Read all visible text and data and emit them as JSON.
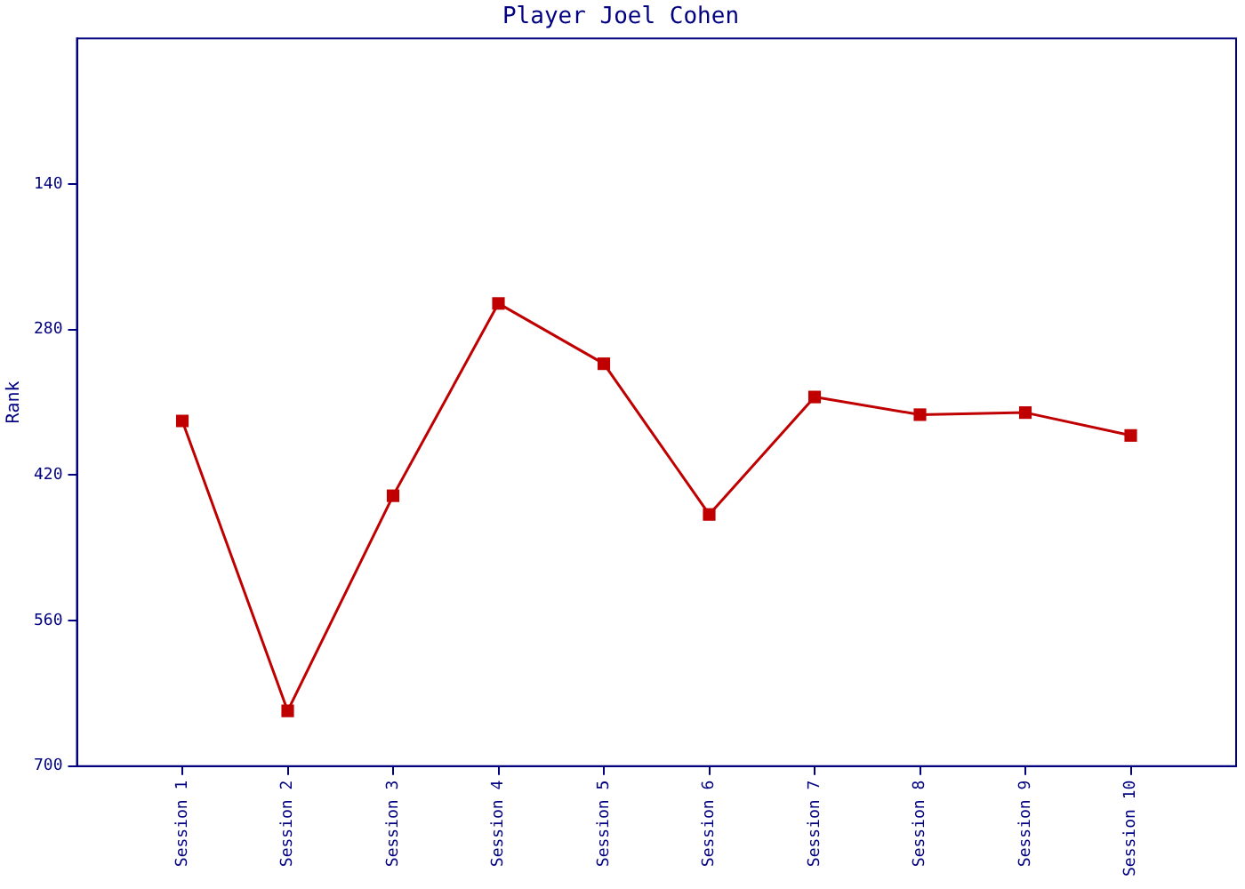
{
  "chart_data": {
    "type": "line",
    "title": "Player Joel Cohen",
    "ylabel": "Rank",
    "categories": [
      "Session 1",
      "Session 2",
      "Session 3",
      "Session 4",
      "Session 5",
      "Session 6",
      "Session 7",
      "Session 8",
      "Session 9",
      "Session 10"
    ],
    "series": [
      {
        "color": "#c00000",
        "values": [
          368,
          647,
          440,
          255,
          313,
          458,
          345,
          362,
          360,
          382
        ]
      }
    ],
    "ylim": [
      700,
      0
    ],
    "yticks": [
      140,
      280,
      420,
      560,
      700
    ],
    "grid": false,
    "legend": false,
    "marker": "square",
    "line_style": "solid"
  }
}
